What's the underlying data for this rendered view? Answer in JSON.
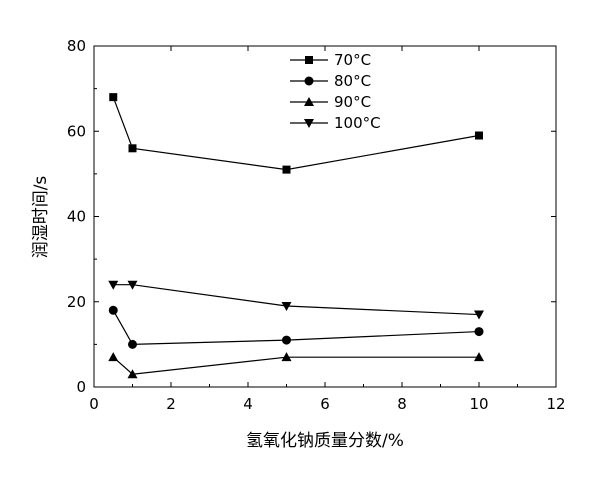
{
  "chart_data": {
    "type": "line",
    "xlabel": "氢氧化钠质量分数/%",
    "ylabel": "润湿时间/s",
    "xlim": [
      0,
      12
    ],
    "ylim": [
      0,
      80
    ],
    "xticks": [
      "0",
      "2",
      "4",
      "6",
      "8",
      "10",
      "12"
    ],
    "yticks": [
      "0",
      "20",
      "40",
      "60",
      "80"
    ],
    "grid": false,
    "legend_position": "top-center",
    "series": [
      {
        "name": "70°C",
        "marker": "square",
        "x": [
          0.5,
          1,
          5,
          10
        ],
        "y": [
          68,
          56,
          51,
          59
        ]
      },
      {
        "name": "80°C",
        "marker": "circle",
        "x": [
          0.5,
          1,
          5,
          10
        ],
        "y": [
          18,
          10,
          11,
          13
        ]
      },
      {
        "name": "90°C",
        "marker": "triangle-up",
        "x": [
          0.5,
          1,
          5,
          10
        ],
        "y": [
          7,
          3,
          7,
          7
        ]
      },
      {
        "name": "100°C",
        "marker": "triangle-down",
        "x": [
          0.5,
          1,
          5,
          10
        ],
        "y": [
          24,
          24,
          19,
          17
        ]
      }
    ]
  }
}
